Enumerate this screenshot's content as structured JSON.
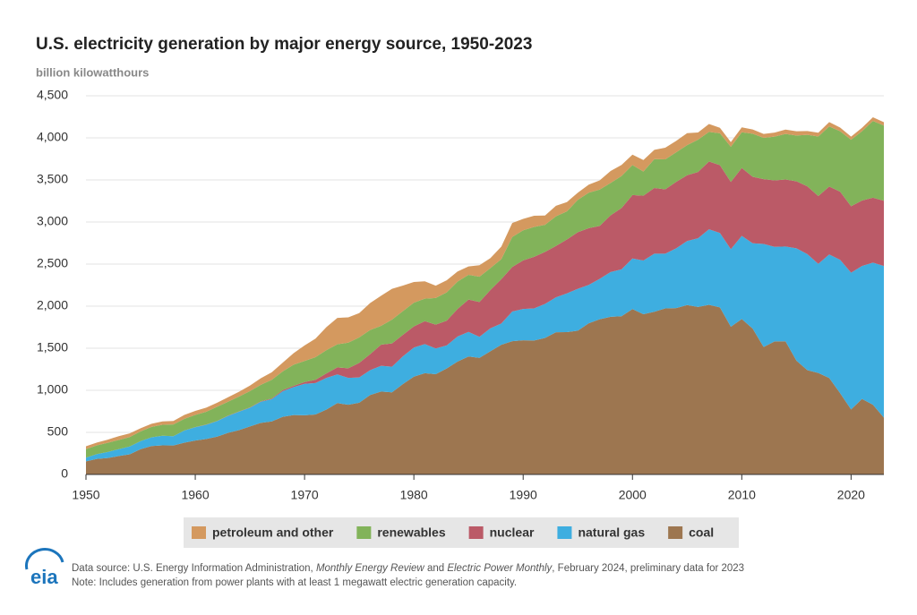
{
  "chart_data": {
    "type": "stacked-area",
    "title": "U.S. electricity generation by major energy source, 1950-2023",
    "subtitle": "billion kilowatthours",
    "x": [
      1950,
      1951,
      1952,
      1953,
      1954,
      1955,
      1956,
      1957,
      1958,
      1959,
      1960,
      1961,
      1962,
      1963,
      1964,
      1965,
      1966,
      1967,
      1968,
      1969,
      1970,
      1971,
      1972,
      1973,
      1974,
      1975,
      1976,
      1977,
      1978,
      1979,
      1980,
      1981,
      1982,
      1983,
      1984,
      1985,
      1986,
      1987,
      1988,
      1989,
      1990,
      1991,
      1992,
      1993,
      1994,
      1995,
      1996,
      1997,
      1998,
      1999,
      2000,
      2001,
      2002,
      2003,
      2004,
      2005,
      2006,
      2007,
      2008,
      2009,
      2010,
      2011,
      2012,
      2013,
      2014,
      2015,
      2016,
      2017,
      2018,
      2019,
      2020,
      2021,
      2022,
      2023
    ],
    "series": [
      {
        "name": "petroleum and other",
        "color": "#d4995f",
        "values": [
          34,
          33,
          38,
          45,
          44,
          37,
          37,
          40,
          40,
          47,
          48,
          49,
          48,
          52,
          57,
          65,
          79,
          89,
          104,
          138,
          184,
          220,
          274,
          314,
          301,
          289,
          320,
          358,
          365,
          303,
          246,
          206,
          146,
          144,
          120,
          100,
          137,
          119,
          149,
          166,
          136,
          134,
          110,
          125,
          111,
          85,
          95,
          108,
          143,
          132,
          124,
          137,
          111,
          139,
          136,
          142,
          85,
          94,
          64,
          57,
          58,
          51,
          47,
          49,
          52,
          51,
          45,
          45,
          53,
          43,
          38,
          40,
          43,
          40
        ]
      },
      {
        "name": "renewables",
        "color": "#82b35a",
        "values": [
          101,
          104,
          109,
          109,
          112,
          116,
          123,
          130,
          140,
          138,
          146,
          152,
          168,
          166,
          177,
          194,
          195,
          222,
          223,
          251,
          250,
          269,
          276,
          275,
          304,
          303,
          287,
          224,
          284,
          283,
          282,
          267,
          317,
          336,
          325,
          294,
          301,
          260,
          237,
          357,
          357,
          354,
          322,
          353,
          334,
          384,
          422,
          433,
          384,
          380,
          356,
          288,
          343,
          356,
          351,
          358,
          385,
          352,
          380,
          417,
          425,
          512,
          491,
          520,
          540,
          544,
          612,
          708,
          713,
          719,
          790,
          824,
          912,
          894
        ]
      },
      {
        "name": "nuclear",
        "color": "#bb5a67",
        "values": [
          0,
          0,
          0,
          0,
          0,
          0,
          0,
          0,
          0,
          0,
          1,
          2,
          2,
          3,
          3,
          4,
          6,
          8,
          13,
          14,
          22,
          38,
          54,
          83,
          114,
          173,
          191,
          251,
          276,
          255,
          251,
          273,
          283,
          294,
          328,
          384,
          414,
          455,
          527,
          529,
          577,
          613,
          619,
          610,
          640,
          673,
          675,
          629,
          674,
          728,
          754,
          769,
          780,
          764,
          789,
          782,
          787,
          806,
          806,
          799,
          807,
          790,
          769,
          789,
          797,
          797,
          806,
          805,
          807,
          809,
          790,
          778,
          772,
          775
        ]
      },
      {
        "name": "natural gas",
        "color": "#3eaee0",
        "values": [
          45,
          57,
          72,
          82,
          93,
          95,
          104,
          114,
          111,
          145,
          158,
          169,
          184,
          202,
          220,
          222,
          251,
          265,
          304,
          333,
          373,
          374,
          376,
          341,
          320,
          300,
          295,
          306,
          305,
          329,
          346,
          346,
          305,
          274,
          297,
          292,
          249,
          273,
          253,
          352,
          373,
          382,
          404,
          415,
          461,
          497,
          456,
          479,
          532,
          557,
          601,
          639,
          691,
          650,
          710,
          761,
          816,
          897,
          883,
          921,
          988,
          1014,
          1226,
          1124,
          1127,
          1335,
          1379,
          1297,
          1469,
          1586,
          1624,
          1579,
          1689,
          1802
        ]
      },
      {
        "name": "coal",
        "color": "#9d7650",
        "values": [
          155,
          185,
          195,
          219,
          239,
          301,
          338,
          346,
          344,
          378,
          403,
          422,
          450,
          494,
          526,
          571,
          613,
          630,
          685,
          706,
          704,
          713,
          771,
          848,
          828,
          853,
          944,
          985,
          976,
          1075,
          1162,
          1203,
          1192,
          1259,
          1342,
          1402,
          1386,
          1464,
          1541,
          1584,
          1594,
          1592,
          1622,
          1690,
          1691,
          1709,
          1796,
          1845,
          1874,
          1881,
          1966,
          1904,
          1933,
          1974,
          1978,
          2013,
          1991,
          2016,
          1986,
          1756,
          1847,
          1733,
          1514,
          1581,
          1582,
          1352,
          1239,
          1206,
          1146,
          965,
          773,
          898,
          828,
          675
        ]
      }
    ],
    "xlim": [
      1950,
      2023
    ],
    "xticks": [
      1950,
      1960,
      1970,
      1980,
      1990,
      2000,
      2010,
      2020
    ],
    "ylim": [
      0,
      4500
    ],
    "yticks": [
      0,
      500,
      {
        "value": 1000,
        "label": "1,000"
      },
      {
        "value": 1500,
        "label": "1,500"
      },
      {
        "value": 2000,
        "label": "2,000"
      },
      {
        "value": 2500,
        "label": "2,500"
      },
      {
        "value": 3000,
        "label": "3,000"
      },
      {
        "value": 3500,
        "label": "3,500"
      },
      {
        "value": 4000,
        "label": "4,000"
      },
      {
        "value": 4500,
        "label": "4,500"
      }
    ],
    "grid": true,
    "legend": "bottom"
  },
  "footer": {
    "logo": "eia",
    "source": [
      "Data source: U.S. Energy Information Administration, ",
      "Monthly Energy Review",
      " and ",
      "Electric Power Monthly",
      ", February 2024, preliminary data for 2023"
    ],
    "note": "Note: Includes generation from power plants with at least 1 megawatt electric generation capacity."
  }
}
